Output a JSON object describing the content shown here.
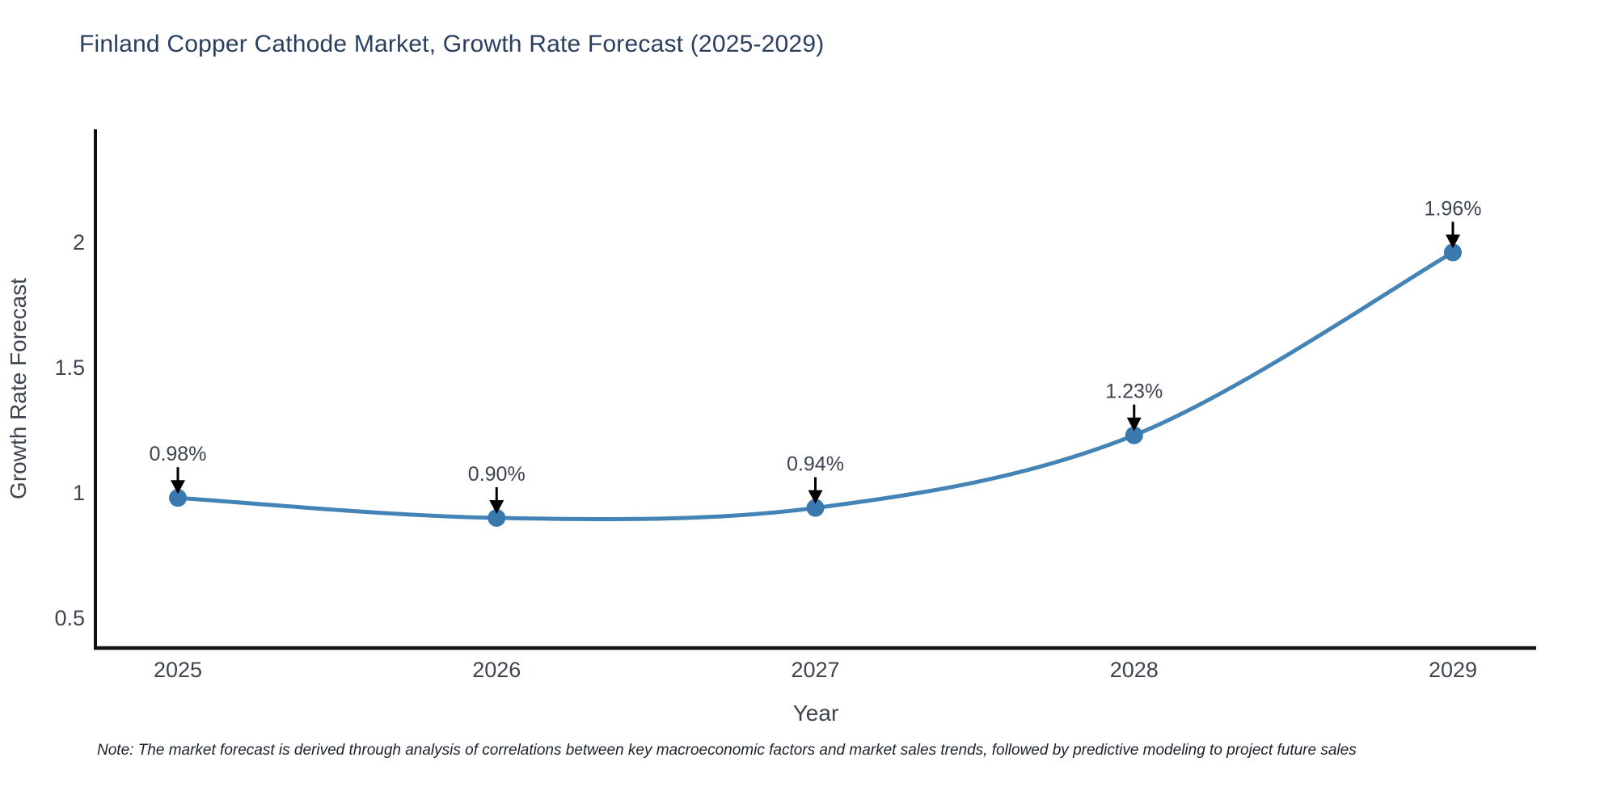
{
  "footnote": "Note: The market forecast is derived through analysis of correlations between key macroeconomic factors and market sales trends, followed by predictive modeling to project future sales",
  "chart_data": {
    "type": "line",
    "title": "Finland Copper Cathode Market, Growth Rate Forecast (2025-2029)",
    "x": [
      "2025",
      "2026",
      "2027",
      "2028",
      "2029"
    ],
    "values": [
      0.98,
      0.9,
      0.94,
      1.23,
      1.96
    ],
    "point_labels": [
      "0.98%",
      "0.90%",
      "0.94%",
      "1.23%",
      "1.96%"
    ],
    "xlabel": "Year",
    "ylabel": "Growth Rate Forecast",
    "yticks": [
      0.5,
      1,
      1.5,
      2
    ],
    "ytick_labels": [
      "0.5",
      "1",
      "1.5",
      "2"
    ],
    "ylim": [
      0.38,
      2.45
    ],
    "line_shape": "spline",
    "markers": true,
    "annotations_have_arrows": true,
    "grid": false,
    "legend": false
  },
  "style": {
    "line_color": "#4383b6",
    "marker_color": "#3a79ae",
    "axis_color": "#111111",
    "tick_color": "#3d4450",
    "title_color": "#2a3f5f",
    "annotation_text_color": "#3d4450",
    "arrow_color": "#000000",
    "background_color": "#ffffff"
  }
}
